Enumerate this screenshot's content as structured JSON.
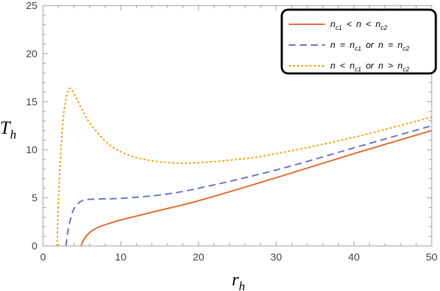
{
  "chart_data": {
    "type": "line",
    "xlabel": "r_h",
    "ylabel": "T_h",
    "xlim": [
      0,
      50
    ],
    "ylim": [
      0,
      25
    ],
    "x_ticks": [
      "0",
      "10",
      "20",
      "30",
      "40",
      "50"
    ],
    "y_ticks": [
      "0",
      "5",
      "10",
      "15",
      "20",
      "25"
    ],
    "grid": false,
    "legend_position": "top-right",
    "series": [
      {
        "name": "n_c1 < n < n_c2",
        "color": "#E3672B",
        "style": "solid",
        "x": [
          4.9,
          5.2,
          6,
          7,
          8,
          10,
          15,
          20,
          30,
          40,
          50
        ],
        "y": [
          0,
          0.6,
          1.4,
          1.9,
          2.2,
          2.7,
          3.7,
          4.7,
          7.1,
          9.6,
          12.0
        ]
      },
      {
        "name": "n = n_c1 or n = n_c2",
        "color": "#5F6FC9",
        "style": "dashed",
        "x": [
          2.95,
          3.2,
          3.6,
          4,
          4.5,
          5,
          6,
          8,
          10,
          15,
          20,
          30,
          40,
          50
        ],
        "y": [
          0,
          1.5,
          3.0,
          3.9,
          4.4,
          4.7,
          4.85,
          4.9,
          4.95,
          5.3,
          6.0,
          7.9,
          10.2,
          12.5
        ]
      },
      {
        "name": "n < n_c1 or n > n_c2",
        "color": "#F2A000",
        "style": "dotted",
        "x": [
          1.8,
          2,
          2.3,
          2.7,
          3.3,
          4,
          5,
          6,
          8,
          10,
          13,
          18,
          25,
          30,
          40,
          50
        ],
        "y": [
          0,
          5,
          10,
          14,
          16.3,
          15.8,
          14.2,
          12.8,
          10.9,
          9.8,
          9.0,
          8.6,
          9.0,
          9.6,
          11.3,
          13.4
        ]
      }
    ],
    "legend": [
      {
        "parts": [
          "n",
          "c1",
          " < n < ",
          "n",
          "c2"
        ]
      },
      {
        "parts": [
          "n = ",
          "n",
          "c1",
          " or n = ",
          "n",
          "c2"
        ]
      },
      {
        "parts": [
          "n < ",
          "n",
          "c1",
          " or n > ",
          "n",
          "c2"
        ]
      }
    ]
  }
}
